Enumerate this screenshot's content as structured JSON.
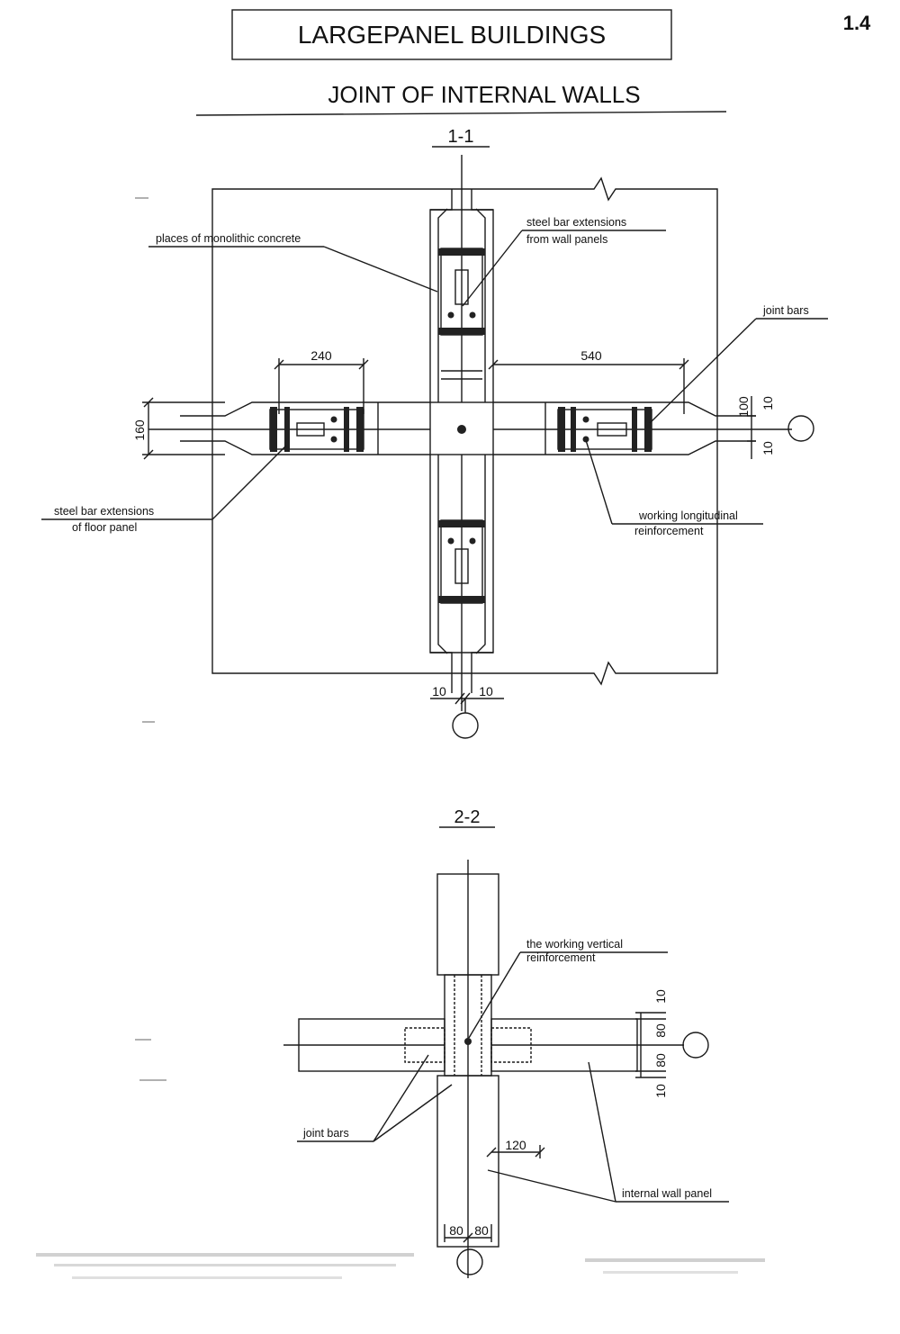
{
  "header": {
    "title": "LARGEPANEL BUILDINGS",
    "sheet_number": "1.4",
    "subtitle": "JOINT OF INTERNAL WALLS"
  },
  "section_1": {
    "label": "1-1",
    "callouts": {
      "monolithic_concrete": "places of monolithic concrete",
      "wall_bars_line1": "steel bar extensions",
      "wall_bars_line2": "from wall panels",
      "joint_bars": "joint bars",
      "floor_bars_line1": "steel bar extensions",
      "floor_bars_line2": "of floor panel",
      "working_long_line1": "working longitudinal",
      "working_long_line2": "reinforcement"
    },
    "dimensions": {
      "d240": "240",
      "d540": "540",
      "d160": "160",
      "d100": "100",
      "d10_right_top": "10",
      "d10_right_bottom": "10",
      "d10_bottom_left": "10",
      "d10_bottom_right": "10"
    }
  },
  "section_2": {
    "label": "2-2",
    "callouts": {
      "working_vertical_line1": "the working vertical",
      "working_vertical_line2": "reinforcement",
      "joint_bars": "joint bars",
      "internal_wall_panel": "internal wall panel"
    },
    "dimensions": {
      "d120": "120",
      "d80_bottom_left": "80",
      "d80_bottom_right": "80",
      "d10_top": "10",
      "d80_upper": "80",
      "d80_lower": "80",
      "d10_bottom": "10"
    }
  }
}
